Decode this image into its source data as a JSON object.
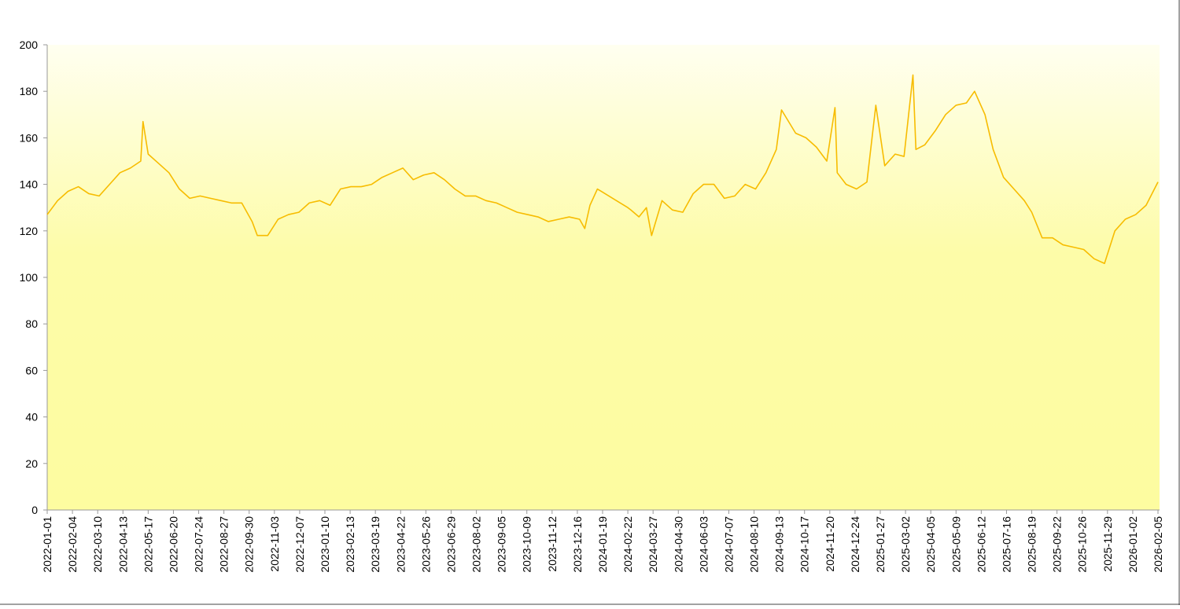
{
  "chart_data": {
    "type": "line",
    "x": [
      "2022-01-01",
      "2022-01-15",
      "2022-01-29",
      "2022-02-12",
      "2022-02-26",
      "2022-03-12",
      "2022-03-26",
      "2022-04-09",
      "2022-04-23",
      "2022-05-07",
      "2022-05-10",
      "2022-05-17",
      "2022-05-31",
      "2022-06-14",
      "2022-06-28",
      "2022-07-12",
      "2022-07-26",
      "2022-08-09",
      "2022-08-23",
      "2022-09-06",
      "2022-09-20",
      "2022-10-04",
      "2022-10-11",
      "2022-10-25",
      "2022-11-08",
      "2022-11-22",
      "2022-12-06",
      "2022-12-20",
      "2023-01-03",
      "2023-01-17",
      "2023-01-31",
      "2023-02-14",
      "2023-02-28",
      "2023-03-14",
      "2023-03-28",
      "2023-04-11",
      "2023-04-25",
      "2023-05-09",
      "2023-05-23",
      "2023-06-06",
      "2023-06-20",
      "2023-07-04",
      "2023-07-18",
      "2023-08-01",
      "2023-08-15",
      "2023-08-29",
      "2023-09-12",
      "2023-09-26",
      "2023-10-10",
      "2023-10-24",
      "2023-11-07",
      "2023-11-21",
      "2023-12-05",
      "2023-12-19",
      "2023-12-26",
      "2024-01-02",
      "2024-01-12",
      "2024-02-22",
      "2024-02-26",
      "2024-03-08",
      "2024-03-18",
      "2024-03-25",
      "2024-04-08",
      "2024-04-22",
      "2024-05-06",
      "2024-05-20",
      "2024-06-03",
      "2024-06-17",
      "2024-07-01",
      "2024-07-15",
      "2024-07-29",
      "2024-08-12",
      "2024-08-26",
      "2024-09-09",
      "2024-09-16",
      "2024-10-05",
      "2024-10-19",
      "2024-11-02",
      "2024-11-16",
      "2024-11-27",
      "2024-11-30",
      "2024-12-12",
      "2024-12-26",
      "2025-01-09",
      "2025-01-21",
      "2025-02-02",
      "2025-02-16",
      "2025-02-28",
      "2025-03-12",
      "2025-03-16",
      "2025-03-28",
      "2025-04-11",
      "2025-04-25",
      "2025-05-09",
      "2025-05-23",
      "2025-06-03",
      "2025-06-17",
      "2025-06-28",
      "2025-07-12",
      "2025-07-26",
      "2025-08-09",
      "2025-08-19",
      "2025-09-02",
      "2025-09-16",
      "2025-09-30",
      "2025-10-14",
      "2025-10-28",
      "2025-11-11",
      "2025-11-25",
      "2025-12-09",
      "2025-12-23",
      "2026-01-06",
      "2026-01-20",
      "2026-02-05"
    ],
    "series": [
      {
        "color": "#f7bc00",
        "values": [
          127,
          133,
          137,
          139,
          136,
          135,
          140,
          145,
          147,
          150,
          167,
          153,
          149,
          145,
          138,
          134,
          135,
          134,
          133,
          132,
          132,
          124,
          118,
          118,
          125,
          127,
          128,
          132,
          133,
          131,
          138,
          139,
          139,
          140,
          143,
          145,
          147,
          142,
          144,
          145,
          142,
          138,
          135,
          135,
          133,
          132,
          130,
          128,
          127,
          126,
          124,
          125,
          126,
          125,
          121,
          131,
          138,
          130,
          129,
          126,
          130,
          118,
          133,
          129,
          128,
          136,
          140,
          140,
          134,
          135,
          140,
          138,
          145,
          155,
          172,
          162,
          160,
          156,
          150,
          173,
          145,
          140,
          138,
          141,
          174,
          148,
          153,
          152,
          187,
          155,
          157,
          163,
          170,
          174,
          175,
          180,
          170,
          155,
          143,
          138,
          133,
          128,
          117,
          117,
          114,
          113,
          112,
          108,
          106,
          120,
          125,
          127,
          131,
          141
        ]
      }
    ],
    "xlim": [
      "2022-01-01",
      "2026-02-05"
    ],
    "xticks": [
      "2022-01-01",
      "2022-02-04",
      "2022-03-10",
      "2022-04-13",
      "2022-05-17",
      "2022-06-20",
      "2022-07-24",
      "2022-08-27",
      "2022-09-30",
      "2022-11-03",
      "2022-12-07",
      "2023-01-10",
      "2023-02-13",
      "2023-03-19",
      "2023-04-22",
      "2023-05-26",
      "2023-06-29",
      "2023-08-02",
      "2023-09-05",
      "2023-10-09",
      "2023-11-12",
      "2023-12-16",
      "2024-01-19",
      "2024-02-22",
      "2024-03-27",
      "2024-04-30",
      "2024-06-03",
      "2024-07-07",
      "2024-08-10",
      "2024-09-13",
      "2024-10-17",
      "2024-11-20",
      "2024-12-24",
      "2025-01-27",
      "2025-03-02",
      "2025-04-05",
      "2025-05-09",
      "2025-06-12",
      "2025-07-16",
      "2025-08-19",
      "2025-09-22",
      "2025-10-26",
      "2025-11-29",
      "2026-01-02",
      "2026-02-05"
    ],
    "ylim": [
      0,
      200
    ],
    "yticks": [
      0,
      20,
      40,
      60,
      80,
      100,
      120,
      140,
      160,
      180,
      200
    ]
  }
}
